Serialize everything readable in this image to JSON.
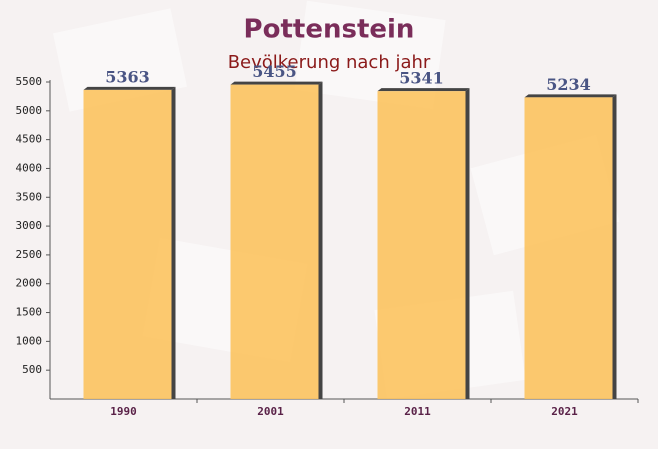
{
  "chart_data": {
    "type": "bar",
    "title": "Pottenstein",
    "subtitle": "Bevölkerung nach jahr",
    "categories": [
      "1990",
      "2001",
      "2011",
      "2021"
    ],
    "values": [
      5363,
      5455,
      5341,
      5234
    ],
    "color": "#fcc35f",
    "ylim": [
      0,
      5500
    ],
    "yticks": [
      500,
      1000,
      1500,
      2000,
      2500,
      3000,
      3500,
      4000,
      4500,
      5000,
      5500
    ]
  }
}
